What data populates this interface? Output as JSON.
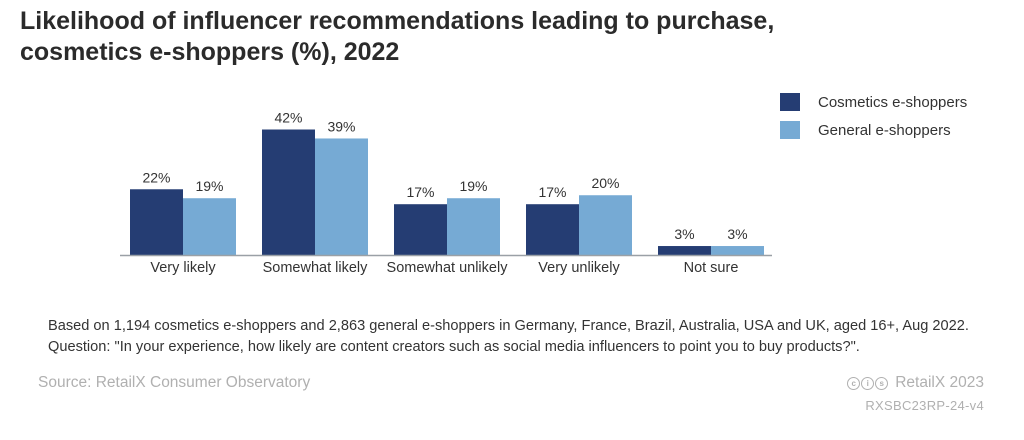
{
  "header": {
    "title_line1": "Likelihood of influencer recommendations leading to purchase,",
    "title_line2": "cosmetics e-shoppers (%), 2022"
  },
  "chart_data": {
    "type": "bar",
    "title": "Likelihood of influencer recommendations leading to purchase, cosmetics e-shoppers (%), 2022",
    "categories": [
      "Very likely",
      "Somewhat likely",
      "Somewhat unlikely",
      "Very unlikely",
      "Not sure"
    ],
    "series": [
      {
        "name": "Cosmetics e-shoppers",
        "values": [
          22,
          42,
          17,
          17,
          3
        ],
        "color": "#253d73"
      },
      {
        "name": "General e-shoppers",
        "values": [
          19,
          39,
          19,
          20,
          3
        ],
        "color": "#76aad4"
      }
    ],
    "value_suffix": "%",
    "ylim": [
      0,
      42
    ],
    "grid": false,
    "legend_position": "top-right",
    "baseline_color": "#9aa0a6"
  },
  "footer": {
    "note": "Based on 1,194 cosmetics e-shoppers and 2,863 general e-shoppers in Germany, France, Brazil, Australia, USA and UK, aged 16+, Aug 2022. Question: \"In your experience, how likely are content creators such as social media influencers to point you to buy products?\".",
    "source": "Source: RetailX Consumer Observatory",
    "brand": "RetailX 2023",
    "license_icons": [
      "creative-commons-icon",
      "attribution-icon",
      "share-alike-icon"
    ],
    "reference": "RXSBC23RP-24-v4"
  }
}
